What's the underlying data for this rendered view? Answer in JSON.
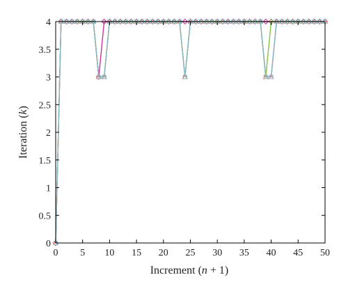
{
  "chart_data": {
    "type": "line",
    "xlabel": "Increment (n + 1)",
    "ylabel": "Iteration (k)",
    "xlim": [
      0,
      50
    ],
    "ylim": [
      0,
      4
    ],
    "xticks": [
      0,
      5,
      10,
      15,
      20,
      25,
      30,
      35,
      40,
      45,
      50
    ],
    "yticks": [
      0,
      0.5,
      1,
      1.5,
      2,
      2.5,
      3,
      3.5,
      4
    ],
    "ytick_labels": [
      "0",
      "0.5",
      "1",
      "1.5",
      "2",
      "2.5",
      "3",
      "3.5",
      "4"
    ],
    "grid": false,
    "legend": "none",
    "x": [
      0,
      1,
      2,
      3,
      4,
      5,
      6,
      7,
      8,
      9,
      10,
      11,
      12,
      13,
      14,
      15,
      16,
      17,
      18,
      19,
      20,
      21,
      22,
      23,
      24,
      25,
      26,
      27,
      28,
      29,
      30,
      31,
      32,
      33,
      34,
      35,
      36,
      37,
      38,
      39,
      40,
      41,
      42,
      43,
      44,
      45,
      46,
      47,
      48,
      49,
      50
    ],
    "series": [
      {
        "color": "#e06060",
        "marker": "triangle",
        "values": [
          0,
          4,
          4,
          4,
          4,
          4,
          4,
          4,
          3,
          3,
          4,
          4,
          4,
          4,
          4,
          4,
          4,
          4,
          4,
          4,
          4,
          4,
          4,
          4,
          3,
          4,
          4,
          4,
          4,
          4,
          4,
          4,
          4,
          4,
          4,
          4,
          4,
          4,
          4,
          3,
          3,
          4,
          4,
          4,
          4,
          4,
          4,
          4,
          4,
          4,
          4
        ]
      },
      {
        "color": "#cc3399",
        "marker": "diamond",
        "values": [
          0,
          4,
          4,
          4,
          4,
          4,
          4,
          4,
          3,
          4,
          4,
          4,
          4,
          4,
          4,
          4,
          4,
          4,
          4,
          4,
          4,
          4,
          4,
          4,
          4,
          4,
          4,
          4,
          4,
          4,
          4,
          4,
          4,
          4,
          4,
          4,
          4,
          4,
          4,
          4,
          4,
          4,
          4,
          4,
          4,
          4,
          4,
          4,
          4,
          4,
          4
        ]
      },
      {
        "color": "#88c040",
        "marker": "circle",
        "values": [
          0,
          4,
          4,
          4,
          4,
          4,
          4,
          4,
          3,
          3,
          4,
          4,
          4,
          4,
          4,
          4,
          4,
          4,
          4,
          4,
          4,
          4,
          4,
          4,
          3,
          4,
          4,
          4,
          4,
          4,
          4,
          4,
          4,
          4,
          4,
          4,
          4,
          4,
          4,
          3,
          4,
          4,
          4,
          4,
          4,
          4,
          4,
          4,
          4,
          4,
          4
        ]
      },
      {
        "color": "#88b8c8",
        "marker": "square",
        "values": [
          0,
          4,
          4,
          4,
          4,
          4,
          4,
          4,
          3,
          3,
          4,
          4,
          4,
          4,
          4,
          4,
          4,
          4,
          4,
          4,
          4,
          4,
          4,
          4,
          3,
          4,
          4,
          4,
          4,
          4,
          4,
          4,
          4,
          4,
          4,
          4,
          4,
          4,
          4,
          3,
          3,
          4,
          4,
          4,
          4,
          4,
          4,
          4,
          4,
          4,
          4
        ]
      }
    ]
  }
}
